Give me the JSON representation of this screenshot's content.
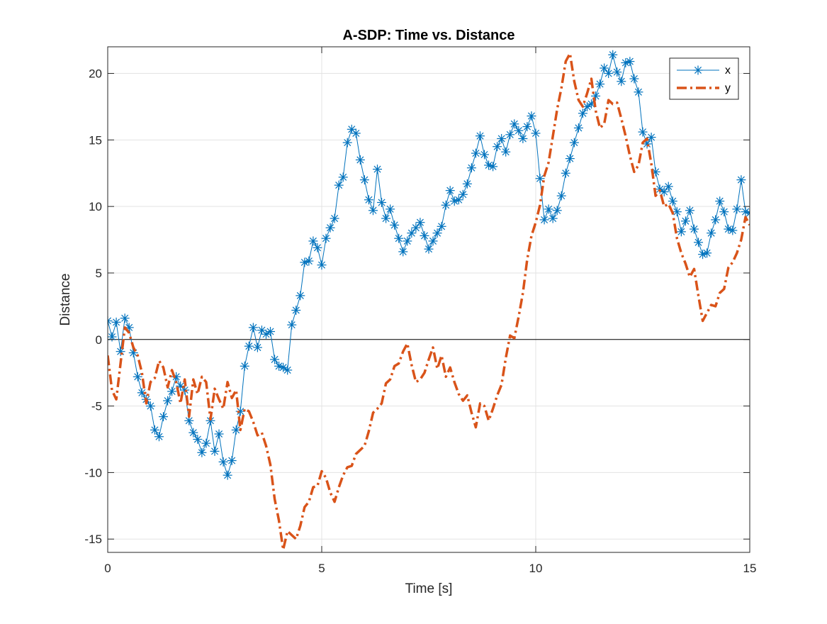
{
  "chart_data": {
    "type": "line",
    "title": "A-SDP: Time vs. Distance",
    "xlabel": "Time [s]",
    "ylabel": "Distance",
    "xlim": [
      0,
      15
    ],
    "ylim": [
      -16,
      22
    ],
    "xticks": [
      0,
      5,
      10,
      15
    ],
    "yticks": [
      -15,
      -10,
      -5,
      0,
      5,
      10,
      15,
      20
    ],
    "grid": true,
    "zero_line": true,
    "legend_position": "top-right",
    "series": [
      {
        "name": "x",
        "color": "#0072BD",
        "line_style": "solid",
        "marker": "asterisk",
        "x": [
          0.0,
          0.1,
          0.2,
          0.3,
          0.4,
          0.5,
          0.6,
          0.7,
          0.8,
          0.9,
          1.0,
          1.1,
          1.2,
          1.3,
          1.4,
          1.5,
          1.6,
          1.7,
          1.8,
          1.9,
          2.0,
          2.1,
          2.2,
          2.3,
          2.4,
          2.5,
          2.6,
          2.7,
          2.8,
          2.9,
          3.0,
          3.1,
          3.2,
          3.3,
          3.4,
          3.5,
          3.6,
          3.7,
          3.8,
          3.9,
          4.0,
          4.1,
          4.2,
          4.3,
          4.4,
          4.5,
          4.6,
          4.7,
          4.8,
          4.9,
          5.0,
          5.1,
          5.2,
          5.3,
          5.4,
          5.5,
          5.6,
          5.7,
          5.8,
          5.9,
          6.0,
          6.1,
          6.2,
          6.3,
          6.4,
          6.5,
          6.6,
          6.7,
          6.8,
          6.9,
          7.0,
          7.1,
          7.2,
          7.3,
          7.4,
          7.5,
          7.6,
          7.7,
          7.8,
          7.9,
          8.0,
          8.1,
          8.2,
          8.3,
          8.4,
          8.5,
          8.6,
          8.7,
          8.8,
          8.9,
          9.0,
          9.1,
          9.2,
          9.3,
          9.4,
          9.5,
          9.6,
          9.7,
          9.8,
          9.9,
          10.0,
          10.1,
          10.2,
          10.3,
          10.4,
          10.5,
          10.6,
          10.7,
          10.8,
          10.9,
          11.0,
          11.1,
          11.2,
          11.3,
          11.4,
          11.5,
          11.6,
          11.7,
          11.8,
          11.9,
          12.0,
          12.1,
          12.2,
          12.3,
          12.4,
          12.5,
          12.6,
          12.7,
          12.8,
          12.9,
          13.0,
          13.1,
          13.2,
          13.3,
          13.4,
          13.5,
          13.6,
          13.7,
          13.8,
          13.9,
          14.0,
          14.1,
          14.2,
          14.3,
          14.4,
          14.5,
          14.6,
          14.7,
          14.8,
          14.9,
          15.0
        ],
        "y": [
          1.4,
          0.2,
          1.3,
          -0.9,
          1.6,
          0.9,
          -1.0,
          -2.8,
          -4.0,
          -4.5,
          -5.0,
          -6.8,
          -7.3,
          -5.8,
          -4.6,
          -3.9,
          -2.8,
          -3.5,
          -3.8,
          -6.1,
          -7.0,
          -7.5,
          -8.5,
          -7.8,
          -6.1,
          -8.4,
          -7.1,
          -9.2,
          -10.2,
          -9.1,
          -6.8,
          -5.4,
          -2.0,
          -0.5,
          0.9,
          -0.6,
          0.7,
          0.4,
          0.6,
          -1.5,
          -2.0,
          -2.1,
          -2.3,
          1.1,
          2.2,
          3.3,
          5.8,
          5.9,
          7.4,
          6.9,
          5.6,
          7.6,
          8.4,
          9.1,
          11.6,
          12.2,
          14.8,
          15.8,
          15.5,
          13.5,
          12.0,
          10.5,
          9.7,
          12.8,
          10.3,
          9.1,
          9.8,
          8.6,
          7.6,
          6.6,
          7.4,
          8.0,
          8.4,
          8.8,
          7.8,
          6.8,
          7.4,
          8.0,
          8.5,
          10.1,
          11.2,
          10.4,
          10.5,
          10.9,
          11.7,
          12.9,
          14.0,
          15.3,
          13.9,
          13.1,
          13.0,
          14.5,
          15.1,
          14.1,
          15.4,
          16.2,
          15.7,
          15.1,
          16.0,
          16.8,
          15.5,
          12.1,
          9.0,
          9.8,
          9.1,
          9.7,
          10.8,
          12.5,
          13.6,
          14.8,
          15.9,
          17.0,
          17.5,
          17.7,
          18.3,
          19.2,
          20.4,
          20.0,
          21.4,
          20.1,
          19.4,
          20.8,
          20.9,
          19.6,
          18.6,
          15.6,
          14.7,
          15.2,
          12.6,
          11.3,
          11.1,
          11.5,
          10.4,
          9.6,
          8.1,
          8.9,
          9.7,
          8.3,
          7.3,
          6.4,
          6.5,
          8.0,
          9.0,
          10.4,
          9.6,
          8.3,
          8.2,
          9.8,
          12.0,
          9.6,
          9.5
        ]
      },
      {
        "name": "y",
        "color": "#D95319",
        "line_style": "dashdot",
        "marker": "none",
        "x": [
          0.0,
          0.1,
          0.2,
          0.3,
          0.4,
          0.5,
          0.6,
          0.7,
          0.8,
          0.9,
          1.0,
          1.1,
          1.2,
          1.3,
          1.4,
          1.5,
          1.6,
          1.7,
          1.8,
          1.9,
          2.0,
          2.1,
          2.2,
          2.3,
          2.4,
          2.5,
          2.6,
          2.7,
          2.8,
          2.9,
          3.0,
          3.1,
          3.2,
          3.3,
          3.4,
          3.5,
          3.6,
          3.7,
          3.8,
          3.9,
          4.0,
          4.1,
          4.2,
          4.3,
          4.4,
          4.5,
          4.6,
          4.7,
          4.8,
          4.9,
          5.0,
          5.1,
          5.2,
          5.3,
          5.4,
          5.5,
          5.6,
          5.7,
          5.8,
          5.9,
          6.0,
          6.1,
          6.2,
          6.3,
          6.4,
          6.5,
          6.6,
          6.7,
          6.8,
          6.9,
          7.0,
          7.1,
          7.2,
          7.3,
          7.4,
          7.5,
          7.6,
          7.7,
          7.8,
          7.9,
          8.0,
          8.1,
          8.2,
          8.3,
          8.4,
          8.5,
          8.6,
          8.7,
          8.8,
          8.9,
          9.0,
          9.1,
          9.2,
          9.3,
          9.4,
          9.5,
          9.6,
          9.7,
          9.8,
          9.9,
          10.0,
          10.1,
          10.2,
          10.3,
          10.4,
          10.5,
          10.6,
          10.7,
          10.8,
          10.9,
          11.0,
          11.1,
          11.2,
          11.3,
          11.4,
          11.5,
          11.6,
          11.7,
          11.8,
          11.9,
          12.0,
          12.1,
          12.2,
          12.3,
          12.4,
          12.5,
          12.6,
          12.7,
          12.8,
          12.9,
          13.0,
          13.1,
          13.2,
          13.3,
          13.4,
          13.5,
          13.6,
          13.7,
          13.8,
          13.9,
          14.0,
          14.1,
          14.2,
          14.3,
          14.4,
          14.5,
          14.6,
          14.7,
          14.8,
          14.9,
          15.0
        ],
        "y": [
          -1.2,
          -3.8,
          -4.5,
          -1.8,
          0.9,
          0.5,
          -0.6,
          -1.2,
          -2.5,
          -4.8,
          -3.2,
          -2.9,
          -1.6,
          -2.1,
          -3.6,
          -2.3,
          -3.2,
          -4.8,
          -3.0,
          -5.8,
          -3.0,
          -4.1,
          -2.8,
          -3.2,
          -6.0,
          -3.7,
          -4.5,
          -5.2,
          -3.2,
          -4.4,
          -3.8,
          -6.8,
          -5.2,
          -5.4,
          -6.2,
          -7.2,
          -7.0,
          -8.0,
          -9.4,
          -12.0,
          -13.6,
          -15.8,
          -14.4,
          -14.7,
          -15.0,
          -14.0,
          -12.6,
          -12.2,
          -11.1,
          -11.0,
          -9.9,
          -10.4,
          -11.5,
          -12.2,
          -11.1,
          -10.2,
          -9.6,
          -9.5,
          -8.6,
          -8.3,
          -8.0,
          -6.9,
          -5.5,
          -5.2,
          -4.8,
          -3.3,
          -3.0,
          -2.0,
          -1.8,
          -0.9,
          -0.3,
          -1.9,
          -3.2,
          -3.0,
          -2.5,
          -1.5,
          -0.6,
          -2.2,
          -1.2,
          -2.8,
          -2.1,
          -3.2,
          -4.1,
          -4.6,
          -4.2,
          -5.5,
          -6.6,
          -4.8,
          -5.0,
          -6.1,
          -5.2,
          -4.2,
          -3.4,
          -1.4,
          0.3,
          0.1,
          1.7,
          3.5,
          6.0,
          7.8,
          8.8,
          10.1,
          12.3,
          13.3,
          15.3,
          17.3,
          18.9,
          20.9,
          21.5,
          19.4,
          18.0,
          17.5,
          18.5,
          19.6,
          17.2,
          15.9,
          16.2,
          18.0,
          17.7,
          17.8,
          16.6,
          15.3,
          13.8,
          12.6,
          13.1,
          14.8,
          15.1,
          13.2,
          10.8,
          11.2,
          10.0,
          10.2,
          9.5,
          7.6,
          6.5,
          5.7,
          4.7,
          5.3,
          3.3,
          1.4,
          2.0,
          2.6,
          2.5,
          3.5,
          3.8,
          5.4,
          5.8,
          6.5,
          7.5,
          9.2,
          8.6
        ]
      }
    ]
  }
}
